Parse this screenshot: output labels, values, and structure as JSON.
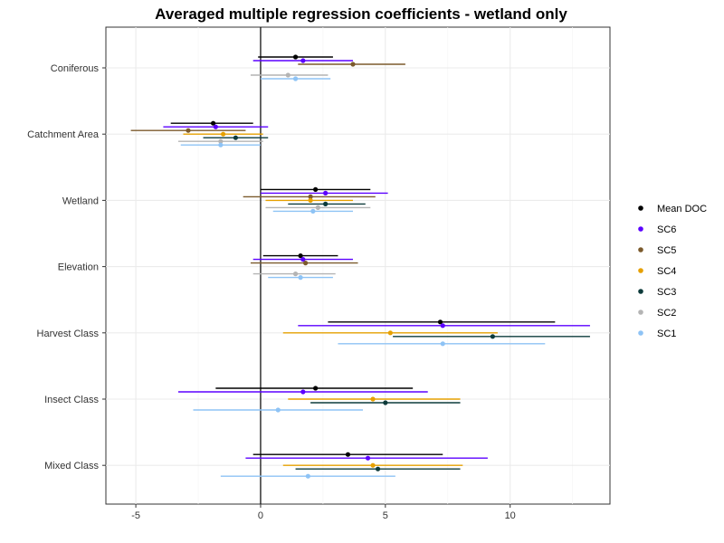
{
  "chart_data": {
    "type": "scatter",
    "subtype": "coefficient-plot",
    "title": "Averaged multiple regression coefficients - wetland only",
    "xlabel": "",
    "ylabel": "",
    "xlim": [
      -6.2,
      14.0
    ],
    "xticks": [
      -5,
      0,
      5,
      10
    ],
    "vline_at": 0,
    "grid": true,
    "legend_position": "right",
    "categories": [
      "Coniferous",
      "Catchment Area",
      "Wetland",
      "Elevation",
      "Harvest Class",
      "Insect Class",
      "Mixed Class"
    ],
    "series": [
      {
        "name": "Mean DOC",
        "color": "#000000",
        "points": [
          {
            "category": "Coniferous",
            "est": 1.4,
            "lo": -0.1,
            "hi": 2.9
          },
          {
            "category": "Catchment Area",
            "est": -1.9,
            "lo": -3.6,
            "hi": -0.3
          },
          {
            "category": "Wetland",
            "est": 2.2,
            "lo": 0.0,
            "hi": 4.4
          },
          {
            "category": "Elevation",
            "est": 1.6,
            "lo": 0.1,
            "hi": 3.1
          },
          {
            "category": "Harvest Class",
            "est": 7.2,
            "lo": 2.7,
            "hi": 11.8
          },
          {
            "category": "Insect Class",
            "est": 2.2,
            "lo": -1.8,
            "hi": 6.1
          },
          {
            "category": "Mixed Class",
            "est": 3.5,
            "lo": -0.3,
            "hi": 7.3
          }
        ]
      },
      {
        "name": "SC6",
        "color": "#5B00FF",
        "points": [
          {
            "category": "Coniferous",
            "est": 1.7,
            "lo": -0.3,
            "hi": 3.7
          },
          {
            "category": "Catchment Area",
            "est": -1.8,
            "lo": -3.9,
            "hi": 0.3
          },
          {
            "category": "Wetland",
            "est": 2.6,
            "lo": 0.0,
            "hi": 5.1
          },
          {
            "category": "Elevation",
            "est": 1.7,
            "lo": -0.3,
            "hi": 3.7
          },
          {
            "category": "Harvest Class",
            "est": 7.3,
            "lo": 1.5,
            "hi": 13.2
          },
          {
            "category": "Insect Class",
            "est": 1.7,
            "lo": -3.3,
            "hi": 6.7
          },
          {
            "category": "Mixed Class",
            "est": 4.3,
            "lo": -0.6,
            "hi": 9.1
          }
        ]
      },
      {
        "name": "SC5",
        "color": "#7B5A2C",
        "points": [
          {
            "category": "Coniferous",
            "est": 3.7,
            "lo": 1.5,
            "hi": 5.8
          },
          {
            "category": "Catchment Area",
            "est": -2.9,
            "lo": -5.2,
            "hi": -0.6
          },
          {
            "category": "Wetland",
            "est": 2.0,
            "lo": -0.7,
            "hi": 4.6
          },
          {
            "category": "Elevation",
            "est": 1.8,
            "lo": -0.4,
            "hi": 3.9
          }
        ]
      },
      {
        "name": "SC4",
        "color": "#E6A000",
        "points": [
          {
            "category": "Catchment Area",
            "est": -1.5,
            "lo": -3.1,
            "hi": 0.1
          },
          {
            "category": "Wetland",
            "est": 2.0,
            "lo": 0.2,
            "hi": 3.7
          },
          {
            "category": "Harvest Class",
            "est": 5.2,
            "lo": 0.9,
            "hi": 9.5
          },
          {
            "category": "Insect Class",
            "est": 4.5,
            "lo": 1.1,
            "hi": 8.0
          },
          {
            "category": "Mixed Class",
            "est": 4.5,
            "lo": 0.9,
            "hi": 8.1
          }
        ]
      },
      {
        "name": "SC3",
        "color": "#0D3B3B",
        "points": [
          {
            "category": "Catchment Area",
            "est": -1.0,
            "lo": -2.3,
            "hi": 0.3
          },
          {
            "category": "Wetland",
            "est": 2.6,
            "lo": 1.1,
            "hi": 4.2
          },
          {
            "category": "Harvest Class",
            "est": 9.3,
            "lo": 5.3,
            "hi": 13.2
          },
          {
            "category": "Insect Class",
            "est": 5.0,
            "lo": 2.0,
            "hi": 8.0
          },
          {
            "category": "Mixed Class",
            "est": 4.7,
            "lo": 1.4,
            "hi": 8.0
          }
        ]
      },
      {
        "name": "SC2",
        "color": "#B4B4B4",
        "points": [
          {
            "category": "Coniferous",
            "est": 1.1,
            "lo": -0.4,
            "hi": 2.7
          },
          {
            "category": "Catchment Area",
            "est": -1.6,
            "lo": -3.3,
            "hi": 0.1
          },
          {
            "category": "Wetland",
            "est": 2.3,
            "lo": 0.2,
            "hi": 4.4
          },
          {
            "category": "Elevation",
            "est": 1.4,
            "lo": -0.3,
            "hi": 3.0
          }
        ]
      },
      {
        "name": "SC1",
        "color": "#8EC3F5",
        "points": [
          {
            "category": "Coniferous",
            "est": 1.4,
            "lo": 0.0,
            "hi": 2.8
          },
          {
            "category": "Catchment Area",
            "est": -1.6,
            "lo": -3.2,
            "hi": 0.0
          },
          {
            "category": "Wetland",
            "est": 2.1,
            "lo": 0.5,
            "hi": 3.7
          },
          {
            "category": "Elevation",
            "est": 1.6,
            "lo": 0.3,
            "hi": 2.9
          },
          {
            "category": "Harvest Class",
            "est": 7.3,
            "lo": 3.1,
            "hi": 11.4
          },
          {
            "category": "Insect Class",
            "est": 0.7,
            "lo": -2.7,
            "hi": 4.1
          },
          {
            "category": "Mixed Class",
            "est": 1.9,
            "lo": -1.6,
            "hi": 5.4
          }
        ]
      }
    ]
  }
}
